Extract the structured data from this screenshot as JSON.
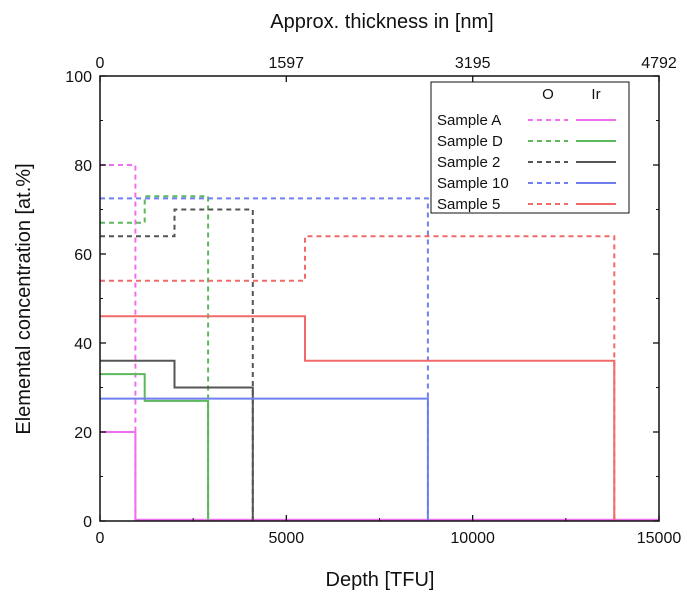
{
  "chart_data": {
    "type": "line",
    "title": "",
    "xlabel": "Depth [TFU]",
    "ylabel": "Elemental concentration [at.%]",
    "top_xlabel": "Approx. thickness in [nm]",
    "xlim": [
      0,
      15000
    ],
    "ylim": [
      0,
      100
    ],
    "x_ticks": [
      0,
      5000,
      10000,
      15000
    ],
    "x_tick_labels": [
      "0",
      "5000",
      "10000",
      "15000"
    ],
    "y_ticks": [
      0,
      20,
      40,
      60,
      80,
      100
    ],
    "y_tick_labels": [
      "0",
      "20",
      "40",
      "60",
      "80",
      "100"
    ],
    "top_ticks": [
      0,
      1597,
      3195,
      4792
    ],
    "top_tick_labels": [
      "0",
      "1597",
      "3195",
      "4792"
    ],
    "grid": false,
    "legend_position": "top-right",
    "legend_columns": [
      "O",
      "Ir"
    ],
    "series": [
      {
        "name": "Sample A",
        "color": "#f06ef0",
        "O": {
          "x": [
            0,
            950,
            950
          ],
          "y": [
            80,
            80,
            0
          ]
        },
        "Ir": {
          "x": [
            0,
            950,
            950,
            15000
          ],
          "y": [
            20,
            20,
            0.3,
            0.3
          ]
        }
      },
      {
        "name": "Sample D",
        "color": "#5cb85c",
        "O": {
          "x": [
            0,
            1200,
            1200,
            2900,
            2900
          ],
          "y": [
            67,
            67,
            73,
            73,
            0
          ]
        },
        "Ir": {
          "x": [
            0,
            1200,
            1200,
            2900,
            2900
          ],
          "y": [
            33,
            33,
            27,
            27,
            0
          ]
        }
      },
      {
        "name": "Sample 2",
        "color": "#555555",
        "O": {
          "x": [
            0,
            2000,
            2000,
            4100,
            4100
          ],
          "y": [
            64,
            64,
            70,
            70,
            0
          ]
        },
        "Ir": {
          "x": [
            0,
            2000,
            2000,
            4100,
            4100
          ],
          "y": [
            36,
            36,
            30,
            30,
            0
          ]
        }
      },
      {
        "name": "Sample 10",
        "color": "#6f7ff0",
        "O": {
          "x": [
            0,
            8800,
            8800
          ],
          "y": [
            72.5,
            72.5,
            0
          ]
        },
        "Ir": {
          "x": [
            0,
            8800,
            8800
          ],
          "y": [
            27.5,
            27.5,
            0
          ]
        }
      },
      {
        "name": "Sample 5",
        "color": "#f06a6a",
        "O": {
          "x": [
            0,
            5500,
            5500,
            13800,
            13800
          ],
          "y": [
            54,
            54,
            64,
            64,
            0
          ]
        },
        "Ir": {
          "x": [
            0,
            5500,
            5500,
            13800,
            13800
          ],
          "y": [
            46,
            46,
            36,
            36,
            0
          ]
        }
      }
    ]
  }
}
